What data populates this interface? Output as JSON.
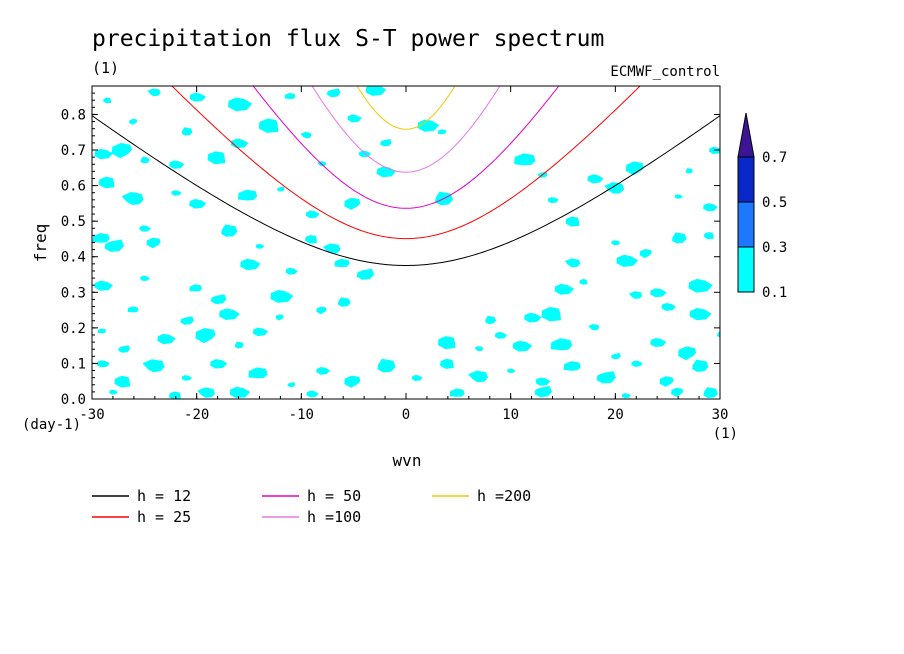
{
  "chart_data": {
    "type": "contour",
    "title": "precipitation flux S-T power spectrum",
    "units": "(1)",
    "subtitle_right": "ECMWF_control",
    "xlabel": "wvn",
    "ylabel": "freq",
    "x_units": "(1)",
    "y_units": "(day-1)",
    "xlim": [
      -30,
      30
    ],
    "ylim": [
      0,
      0.88
    ],
    "x_ticks": [
      -30,
      -20,
      -10,
      0,
      10,
      20,
      30
    ],
    "x_tick_labels": [
      "-30",
      "-20",
      "-10",
      "0",
      "10",
      "20",
      "30"
    ],
    "y_ticks": [
      0,
      0.1,
      0.2,
      0.3,
      0.4,
      0.5,
      0.6,
      0.7,
      0.8
    ],
    "y_tick_labels": [
      "0.0",
      "0.1",
      "0.2",
      "0.3",
      "0.4",
      "0.5",
      "0.6",
      "0.7",
      "0.8"
    ],
    "colorbar": {
      "levels": [
        "0.1",
        "0.3",
        "0.5",
        "0.7"
      ],
      "colors": [
        "#00ffff",
        "#1e78ff",
        "#0a28c8",
        "#3c1496"
      ]
    },
    "fill_color": "#00ffff",
    "series": [
      {
        "name": "h = 12",
        "h": 12,
        "color": "#000000"
      },
      {
        "name": "h = 25",
        "h": 25,
        "color": "#ff0000"
      },
      {
        "name": "h = 50",
        "h": 50,
        "color": "#e600c8"
      },
      {
        "name": "h =100",
        "h": 100,
        "color": "#e678e6"
      },
      {
        "name": "h =200",
        "h": 200,
        "color": "#f0c800"
      }
    ],
    "patches": [
      [
        -28.5,
        0.84
      ],
      [
        -24,
        0.86
      ],
      [
        -20,
        0.85
      ],
      [
        -16,
        0.83
      ],
      [
        -11,
        0.85
      ],
      [
        -7,
        0.86
      ],
      [
        -3,
        0.87
      ],
      [
        -26,
        0.78
      ],
      [
        -21,
        0.75
      ],
      [
        -16,
        0.72
      ],
      [
        -13,
        0.77
      ],
      [
        -9.5,
        0.74
      ],
      [
        -5,
        0.79
      ],
      [
        2,
        0.77
      ],
      [
        3.5,
        0.75
      ],
      [
        -2,
        0.72
      ],
      [
        -29,
        0.69
      ],
      [
        -27,
        0.7
      ],
      [
        -25,
        0.67
      ],
      [
        -22,
        0.66
      ],
      [
        -18,
        0.68
      ],
      [
        -8,
        0.66
      ],
      [
        -4,
        0.69
      ],
      [
        -2,
        0.64
      ],
      [
        11.5,
        0.67
      ],
      [
        13,
        0.63
      ],
      [
        18,
        0.62
      ],
      [
        22,
        0.65
      ],
      [
        27,
        0.64
      ],
      [
        29.5,
        0.7
      ],
      [
        -28.5,
        0.61
      ],
      [
        -26,
        0.56
      ],
      [
        -22,
        0.58
      ],
      [
        -20,
        0.55
      ],
      [
        -15,
        0.57
      ],
      [
        -12,
        0.59
      ],
      [
        -9,
        0.52
      ],
      [
        -5,
        0.55
      ],
      [
        3.5,
        0.56
      ],
      [
        14,
        0.56
      ],
      [
        16,
        0.5
      ],
      [
        20,
        0.59
      ],
      [
        26,
        0.57
      ],
      [
        29,
        0.54
      ],
      [
        -29,
        0.45
      ],
      [
        -28,
        0.43
      ],
      [
        -25,
        0.48
      ],
      [
        -24,
        0.44
      ],
      [
        -17,
        0.47
      ],
      [
        -14,
        0.43
      ],
      [
        -9,
        0.45
      ],
      [
        -7,
        0.42
      ],
      [
        -15,
        0.38
      ],
      [
        -11,
        0.36
      ],
      [
        -6,
        0.38
      ],
      [
        -4,
        0.35
      ],
      [
        20,
        0.44
      ],
      [
        23,
        0.41
      ],
      [
        26,
        0.45
      ],
      [
        21,
        0.39
      ],
      [
        29,
        0.46
      ],
      [
        16,
        0.38
      ],
      [
        -29,
        0.32
      ],
      [
        -25,
        0.34
      ],
      [
        -20,
        0.31
      ],
      [
        -18,
        0.28
      ],
      [
        -12,
        0.29
      ],
      [
        -8,
        0.25
      ],
      [
        -6,
        0.27
      ],
      [
        15,
        0.31
      ],
      [
        17,
        0.33
      ],
      [
        22,
        0.29
      ],
      [
        24,
        0.3
      ],
      [
        28,
        0.32
      ],
      [
        -26,
        0.25
      ],
      [
        -21,
        0.22
      ],
      [
        -17,
        0.24
      ],
      [
        -12,
        0.23
      ],
      [
        8,
        0.22
      ],
      [
        12,
        0.23
      ],
      [
        14,
        0.24
      ],
      [
        18,
        0.2
      ],
      [
        25,
        0.26
      ],
      [
        28,
        0.24
      ],
      [
        -29,
        0.19
      ],
      [
        -27,
        0.14
      ],
      [
        -23,
        0.17
      ],
      [
        -19,
        0.18
      ],
      [
        -16,
        0.15
      ],
      [
        -14,
        0.19
      ],
      [
        4,
        0.16
      ],
      [
        7,
        0.14
      ],
      [
        9,
        0.18
      ],
      [
        11,
        0.15
      ],
      [
        15,
        0.15
      ],
      [
        20,
        0.12
      ],
      [
        24,
        0.16
      ],
      [
        27,
        0.13
      ],
      [
        30,
        0.18
      ],
      [
        -29,
        0.1
      ],
      [
        -27,
        0.05
      ],
      [
        -24,
        0.09
      ],
      [
        -21,
        0.06
      ],
      [
        -18,
        0.1
      ],
      [
        -14,
        0.07
      ],
      [
        -11,
        0.04
      ],
      [
        -8,
        0.08
      ],
      [
        -5,
        0.05
      ],
      [
        -2,
        0.09
      ],
      [
        1,
        0.06
      ],
      [
        4,
        0.1
      ],
      [
        7,
        0.06
      ],
      [
        10,
        0.08
      ],
      [
        13,
        0.05
      ],
      [
        16,
        0.09
      ],
      [
        19,
        0.06
      ],
      [
        22,
        0.1
      ],
      [
        25,
        0.05
      ],
      [
        28,
        0.09
      ],
      [
        -28,
        0.02
      ],
      [
        -22,
        0.01
      ],
      [
        -19,
        0.015
      ],
      [
        -16,
        0.02
      ],
      [
        -9,
        0.015
      ],
      [
        5,
        0.015
      ],
      [
        13,
        0.02
      ],
      [
        21,
        0.01
      ],
      [
        26,
        0.02
      ],
      [
        29,
        0.015
      ]
    ]
  },
  "legend_title": "",
  "labels": {}
}
